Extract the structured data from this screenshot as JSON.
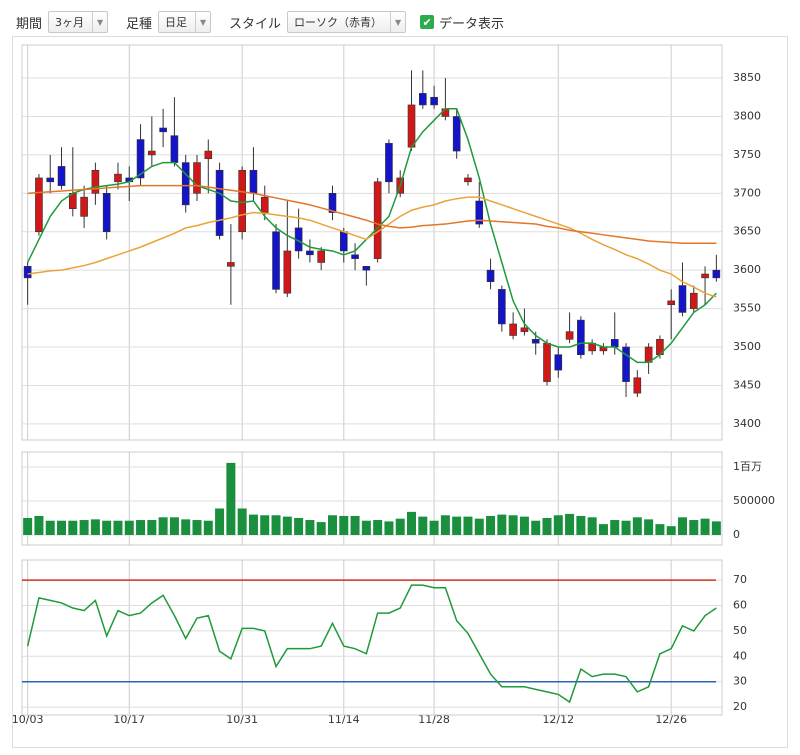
{
  "toolbar": {
    "period_label": "期間",
    "period_value": "3ヶ月",
    "bar_label": "足種",
    "bar_value": "日足",
    "style_label": "スタイル",
    "style_value": "ローソク（赤青）",
    "data_label": "データ表示"
  },
  "chart_data": [
    {
      "type": "candlestick",
      "categories": [
        "10/03",
        null,
        null,
        null,
        null,
        null,
        null,
        null,
        null,
        "10/17",
        null,
        null,
        null,
        null,
        null,
        null,
        null,
        null,
        null,
        "10/31",
        null,
        null,
        null,
        null,
        null,
        null,
        null,
        null,
        "11/14",
        null,
        null,
        null,
        null,
        null,
        null,
        null,
        "11/28",
        null,
        null,
        null,
        null,
        null,
        null,
        null,
        null,
        null,
        null,
        "12/12",
        null,
        null,
        null,
        null,
        null,
        null,
        null,
        null,
        null,
        "12/26",
        null,
        null,
        null,
        null
      ],
      "open": [
        3605,
        3650,
        3720,
        3735,
        3680,
        3670,
        3700,
        3700,
        3715,
        3720,
        3770,
        3750,
        3785,
        3775,
        3740,
        3700,
        3745,
        3730,
        3605,
        3650,
        3730,
        3675,
        3650,
        3570,
        3655,
        3625,
        3610,
        3700,
        3650,
        3620,
        3605,
        3615,
        3765,
        3700,
        3760,
        3830,
        3825,
        3800,
        3800,
        3715,
        3690,
        3600,
        3575,
        3515,
        3520,
        3510,
        3455,
        3490,
        3510,
        3535,
        3495,
        3495,
        3510,
        3500,
        3440,
        3480,
        3490,
        3555,
        3580,
        3550,
        3590,
        3600
      ],
      "high": [
        3610,
        3725,
        3750,
        3760,
        3760,
        3710,
        3740,
        3710,
        3740,
        3735,
        3790,
        3800,
        3810,
        3825,
        3750,
        3750,
        3770,
        3740,
        3660,
        3735,
        3760,
        3710,
        3660,
        3690,
        3680,
        3640,
        3630,
        3710,
        3655,
        3635,
        3605,
        3720,
        3770,
        3730,
        3860,
        3860,
        3840,
        3850,
        3810,
        3725,
        3715,
        3615,
        3580,
        3545,
        3550,
        3520,
        3510,
        3500,
        3545,
        3540,
        3510,
        3505,
        3545,
        3505,
        3470,
        3505,
        3515,
        3575,
        3610,
        3580,
        3605,
        3620
      ],
      "low": [
        3555,
        3645,
        3700,
        3705,
        3670,
        3655,
        3685,
        3640,
        3705,
        3690,
        3710,
        3735,
        3760,
        3735,
        3675,
        3690,
        3700,
        3640,
        3555,
        3640,
        3690,
        3665,
        3570,
        3565,
        3615,
        3610,
        3600,
        3665,
        3610,
        3600,
        3580,
        3610,
        3700,
        3695,
        3755,
        3810,
        3810,
        3795,
        3745,
        3710,
        3655,
        3575,
        3520,
        3510,
        3515,
        3490,
        3450,
        3460,
        3505,
        3485,
        3490,
        3490,
        3490,
        3435,
        3435,
        3465,
        3485,
        3510,
        3540,
        3545,
        3555,
        3585
      ],
      "close": [
        3590,
        3720,
        3715,
        3710,
        3700,
        3695,
        3730,
        3650,
        3725,
        3715,
        3720,
        3755,
        3780,
        3740,
        3685,
        3740,
        3755,
        3645,
        3610,
        3730,
        3700,
        3695,
        3575,
        3625,
        3625,
        3620,
        3625,
        3675,
        3625,
        3615,
        3600,
        3715,
        3715,
        3720,
        3815,
        3815,
        3815,
        3810,
        3755,
        3720,
        3660,
        3585,
        3530,
        3530,
        3525,
        3505,
        3505,
        3470,
        3520,
        3490,
        3505,
        3500,
        3500,
        3455,
        3460,
        3500,
        3510,
        3560,
        3545,
        3570,
        3595,
        3590
      ],
      "up_color": "#d01818",
      "down_color": "#1414c8",
      "moving_averages": [
        {
          "color": "#1f9a3a",
          "values": [
            3610,
            3640,
            3670,
            3690,
            3700,
            3705,
            3708,
            3710,
            3712,
            3715,
            3725,
            3735,
            3740,
            3740,
            3725,
            3710,
            3705,
            3700,
            3690,
            3688,
            3690,
            3670,
            3655,
            3645,
            3638,
            3630,
            3627,
            3625,
            3620,
            3625,
            3640,
            3655,
            3670,
            3710,
            3760,
            3780,
            3795,
            3810,
            3810,
            3770,
            3720,
            3660,
            3610,
            3560,
            3530,
            3515,
            3505,
            3500,
            3500,
            3505,
            3505,
            3500,
            3500,
            3490,
            3480,
            3480,
            3490,
            3505,
            3525,
            3545,
            3555,
            3570
          ]
        },
        {
          "color": "#eba23a",
          "values": [
            3595,
            3597,
            3599,
            3600,
            3603,
            3606,
            3610,
            3615,
            3620,
            3625,
            3630,
            3636,
            3642,
            3648,
            3655,
            3658,
            3662,
            3665,
            3668,
            3672,
            3675,
            3674,
            3672,
            3670,
            3668,
            3665,
            3660,
            3655,
            3650,
            3645,
            3640,
            3650,
            3660,
            3670,
            3678,
            3682,
            3685,
            3690,
            3693,
            3695,
            3695,
            3690,
            3685,
            3680,
            3675,
            3670,
            3665,
            3660,
            3655,
            3648,
            3640,
            3633,
            3627,
            3620,
            3615,
            3608,
            3600,
            3595,
            3585,
            3578,
            3570,
            3565
          ]
        },
        {
          "color": "#e37628",
          "values": [
            3700,
            3701,
            3702,
            3703,
            3704,
            3705,
            3706,
            3707,
            3708,
            3709,
            3710,
            3710,
            3710,
            3710,
            3710,
            3710,
            3708,
            3706,
            3704,
            3702,
            3700,
            3697,
            3694,
            3691,
            3688,
            3685,
            3681,
            3677,
            3673,
            3669,
            3665,
            3660,
            3657,
            3655,
            3656,
            3658,
            3659,
            3660,
            3662,
            3664,
            3665,
            3664,
            3663,
            3662,
            3661,
            3660,
            3657,
            3655,
            3652,
            3650,
            3648,
            3646,
            3644,
            3642,
            3640,
            3638,
            3637,
            3636,
            3635,
            3635,
            3635,
            3635
          ]
        }
      ],
      "ylim": [
        3379,
        3893
      ],
      "yticks": [
        3400,
        3450,
        3500,
        3550,
        3600,
        3650,
        3700,
        3750,
        3800,
        3850
      ],
      "grid": true
    },
    {
      "type": "bar",
      "values": [
        250000,
        280000,
        210000,
        210000,
        210000,
        220000,
        230000,
        210000,
        210000,
        210000,
        220000,
        220000,
        260000,
        260000,
        230000,
        220000,
        210000,
        390000,
        1060000,
        390000,
        300000,
        290000,
        290000,
        270000,
        250000,
        220000,
        190000,
        290000,
        280000,
        280000,
        210000,
        220000,
        200000,
        240000,
        340000,
        270000,
        210000,
        290000,
        270000,
        270000,
        240000,
        280000,
        300000,
        290000,
        270000,
        210000,
        250000,
        290000,
        310000,
        280000,
        260000,
        160000,
        220000,
        210000,
        260000,
        230000,
        160000,
        130000,
        260000,
        220000,
        240000,
        200000
      ],
      "color": "#1a8f3e",
      "ylim": [
        -147000,
        1220000
      ],
      "yticks": [
        0,
        500000,
        {
          "value": 1000000,
          "label": "1百万"
        }
      ],
      "grid": true
    },
    {
      "type": "line",
      "values": [
        44,
        63,
        62,
        61,
        59,
        58,
        62,
        48,
        58,
        56,
        57,
        61,
        64,
        56,
        47,
        55,
        56,
        42,
        39,
        51,
        51,
        50,
        36,
        43,
        43,
        43,
        44,
        53,
        44,
        43,
        41,
        57,
        57,
        59,
        68,
        68,
        67,
        67,
        54,
        49,
        41,
        33,
        28,
        28,
        28,
        27,
        26,
        25,
        22,
        35,
        32,
        33,
        33,
        32,
        26,
        28,
        41,
        43,
        52,
        50,
        56,
        59
      ],
      "color": "#1f9a3a",
      "levels": [
        {
          "value": 70,
          "color": "#d03020"
        },
        {
          "value": 30,
          "color": "#2a64b8"
        }
      ],
      "ylim": [
        16.9,
        77.9
      ],
      "yticks": [
        20,
        30,
        40,
        50,
        60,
        70
      ],
      "grid": true
    }
  ]
}
